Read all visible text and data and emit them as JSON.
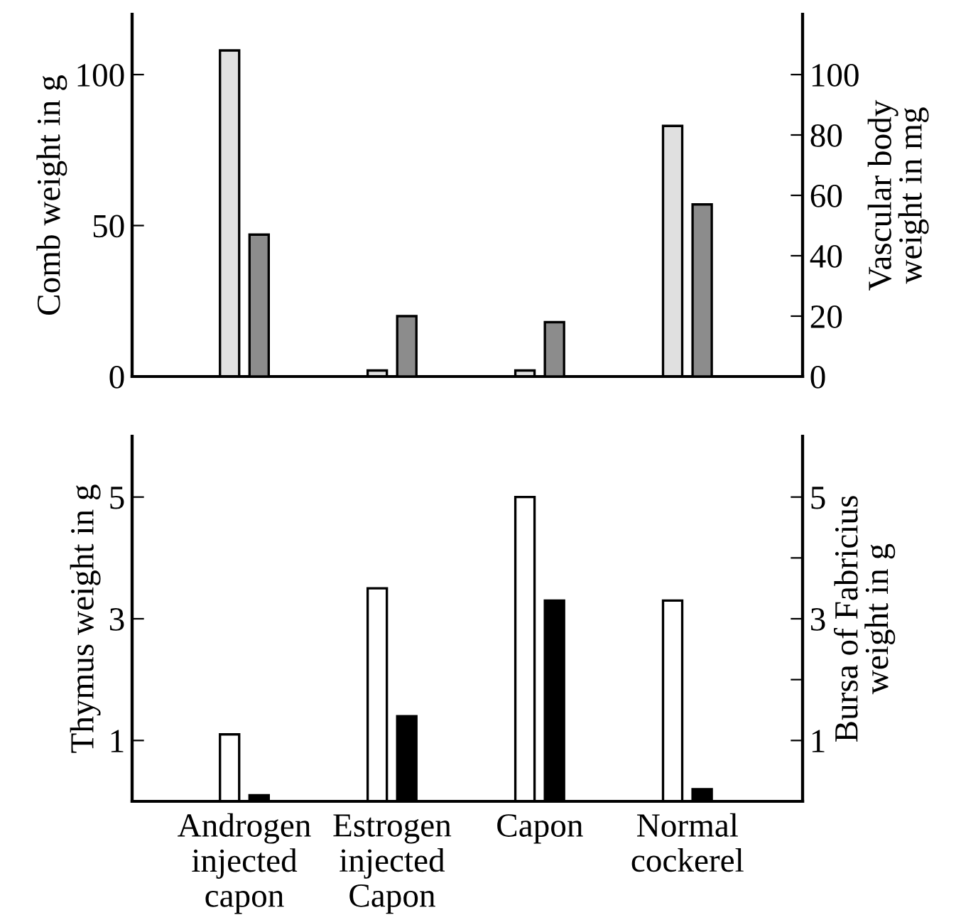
{
  "chart_data": [
    {
      "type": "bar",
      "categories": [
        null,
        null,
        null,
        null
      ],
      "ylabel": "Comb weight in g",
      "y2label": "Vascular body\nweight in mg",
      "series": [
        {
          "color": "#e0e0e0",
          "values": [
            108,
            2,
            2,
            83
          ]
        },
        {
          "color": "#8c8c8c",
          "axis": "y2",
          "values": [
            47,
            20,
            18,
            57
          ]
        }
      ],
      "ylim": [
        0,
        120
      ],
      "yticks": [
        0,
        50,
        100
      ],
      "y2lim": [
        0,
        120
      ],
      "y2ticks": [
        0,
        20,
        40,
        60,
        80,
        100
      ],
      "grid": false,
      "legend": false
    },
    {
      "type": "bar",
      "categories": [
        "Androgen\ninjected\ncapon",
        "Estrogen\ninjected\nCapon",
        "Capon",
        "Normal\ncockerel"
      ],
      "ylabel": "Thymus weight in g",
      "y2label": "Bursa of Fabricius\nweight in g",
      "series": [
        {
          "color": "#ffffff",
          "values": [
            1.1,
            3.5,
            5.0,
            3.3
          ]
        },
        {
          "color": "#000000",
          "axis": "y2",
          "values": [
            0.1,
            1.4,
            3.3,
            0.2
          ]
        }
      ],
      "ylim": [
        0,
        6
      ],
      "yticks": [
        1,
        3,
        5
      ],
      "y2lim": [
        0,
        6
      ],
      "y2ticks": [
        1,
        {
          "value": 2,
          "label": null
        },
        3,
        {
          "value": 4,
          "label": null
        },
        5
      ],
      "grid": false,
      "legend": false
    }
  ]
}
